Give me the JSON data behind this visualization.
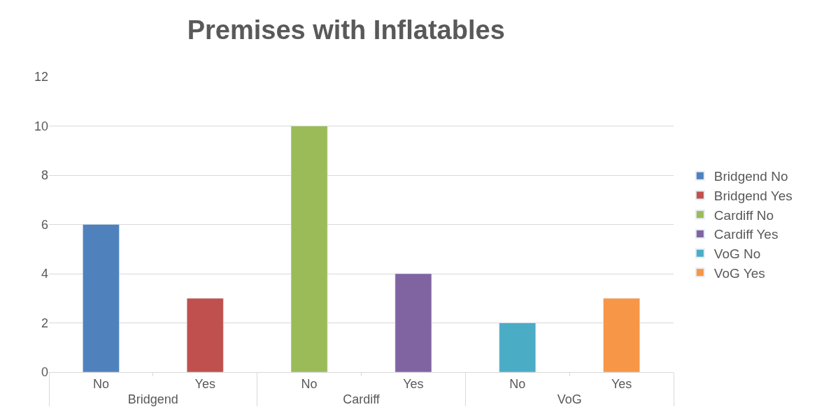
{
  "chart_data": {
    "type": "bar",
    "title": "Premises with Inflatables",
    "categories": [
      "No",
      "Yes",
      "No",
      "Yes",
      "No",
      "Yes"
    ],
    "annotations": [
      "Bridgend",
      "Cardiff",
      "VoG"
    ],
    "series": [
      {
        "name": "Bridgend No",
        "color": "#4f81bd",
        "values": [
          6,
          null,
          null,
          null,
          null,
          null
        ]
      },
      {
        "name": "Bridgend Yes",
        "color": "#c0504d",
        "values": [
          null,
          3,
          null,
          null,
          null,
          null
        ]
      },
      {
        "name": "Cardiff No",
        "color": "#9bbb59",
        "values": [
          null,
          null,
          10,
          null,
          null,
          null
        ]
      },
      {
        "name": "Cardiff Yes",
        "color": "#8064a2",
        "values": [
          null,
          null,
          null,
          4,
          null,
          null
        ]
      },
      {
        "name": "VoG No",
        "color": "#4bacc6",
        "values": [
          null,
          null,
          null,
          null,
          2,
          null
        ]
      },
      {
        "name": "VoG Yes",
        "color": "#f79646",
        "values": [
          null,
          null,
          null,
          null,
          null,
          3
        ]
      }
    ],
    "ylim": [
      0,
      12
    ],
    "yticks": [
      0,
      2,
      4,
      6,
      8,
      10,
      12
    ],
    "grid": "y",
    "legend": "right"
  }
}
